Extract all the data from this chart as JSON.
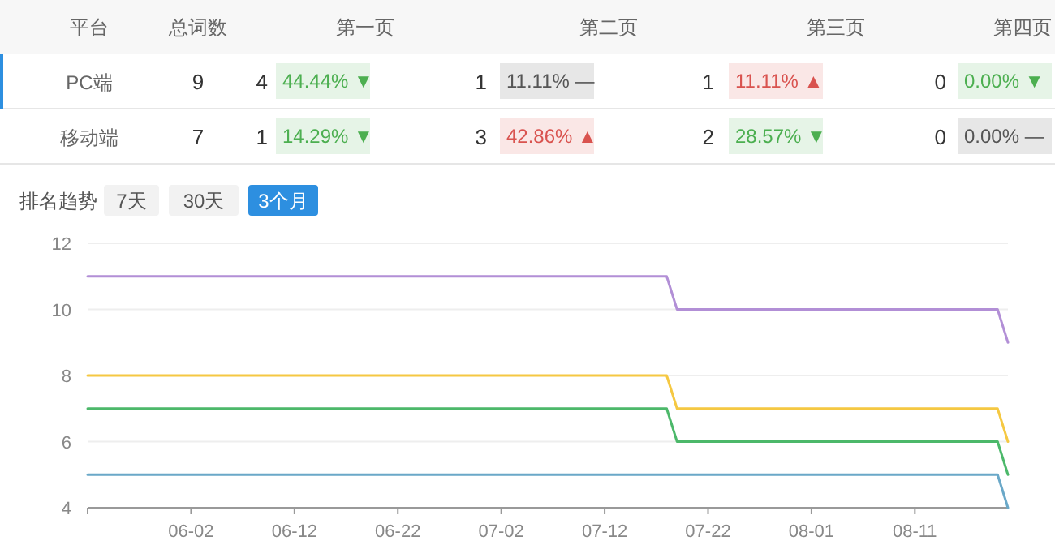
{
  "chart_data": [
    {
      "type": "other",
      "categories": [
        "平台",
        "总词数",
        "第一页",
        "第二页",
        "第三页",
        "第四页"
      ],
      "cell_labels": [
        [
          "PC端",
          "9",
          [
            "4",
            "44.44% ▼"
          ],
          [
            "1",
            "11.11% —"
          ],
          [
            "1",
            "11.11% ▲"
          ],
          [
            "0",
            "0.00% ▼"
          ]
        ],
        [
          "移动端",
          "7",
          [
            "1",
            "14.29% ▼"
          ],
          [
            "3",
            "42.86% ▲"
          ],
          [
            "2",
            "28.57% ▼"
          ],
          [
            "0",
            "0.00% —"
          ]
        ]
      ],
      "colors": [
        [
          "#4caf50",
          "#555555",
          "#d9534f",
          "#4caf50"
        ],
        [
          "#4caf50",
          "#d9534f",
          "#4caf50",
          "#555555"
        ]
      ]
    },
    {
      "type": "line",
      "title": "排名趋势",
      "annotations": [
        "7天",
        "30天",
        "3个月"
      ],
      "colors": [
        "#f2f2f2",
        "#f2f2f2",
        "#2d8fe0"
      ],
      "x": [
        "--05-23",
        "--07-18",
        "--07-19",
        "--08-19",
        "--08-20"
      ],
      "series": [
        {
          "color": "#b28fd6",
          "values": [
            11,
            11,
            10,
            10,
            9
          ]
        },
        {
          "color": "#f5c842",
          "values": [
            8,
            8,
            7,
            7,
            6
          ]
        },
        {
          "color": "#4cb86a",
          "values": [
            7,
            7,
            6,
            6,
            5
          ]
        },
        {
          "color": "#6aa8c8",
          "values": [
            5,
            5,
            5,
            5,
            4
          ]
        }
      ],
      "xlim": [
        "--05-23",
        "--08-20"
      ],
      "xticks": [
        {
          "value": "--06-02",
          "label": "06-02"
        },
        {
          "value": "--06-12",
          "label": "06-12"
        },
        {
          "value": "--06-22",
          "label": "06-22"
        },
        {
          "value": "--07-02",
          "label": "07-02"
        },
        {
          "value": "--07-12",
          "label": "07-12"
        },
        {
          "value": "--07-22",
          "label": "07-22"
        },
        {
          "value": "--08-01",
          "label": "08-01"
        },
        {
          "value": "--08-11",
          "label": "08-11"
        }
      ],
      "ylim": [
        4,
        12
      ],
      "yticks": [
        4,
        6,
        8,
        10,
        12
      ],
      "grid": "y",
      "marker": "none",
      "line_style": "solid"
    }
  ]
}
